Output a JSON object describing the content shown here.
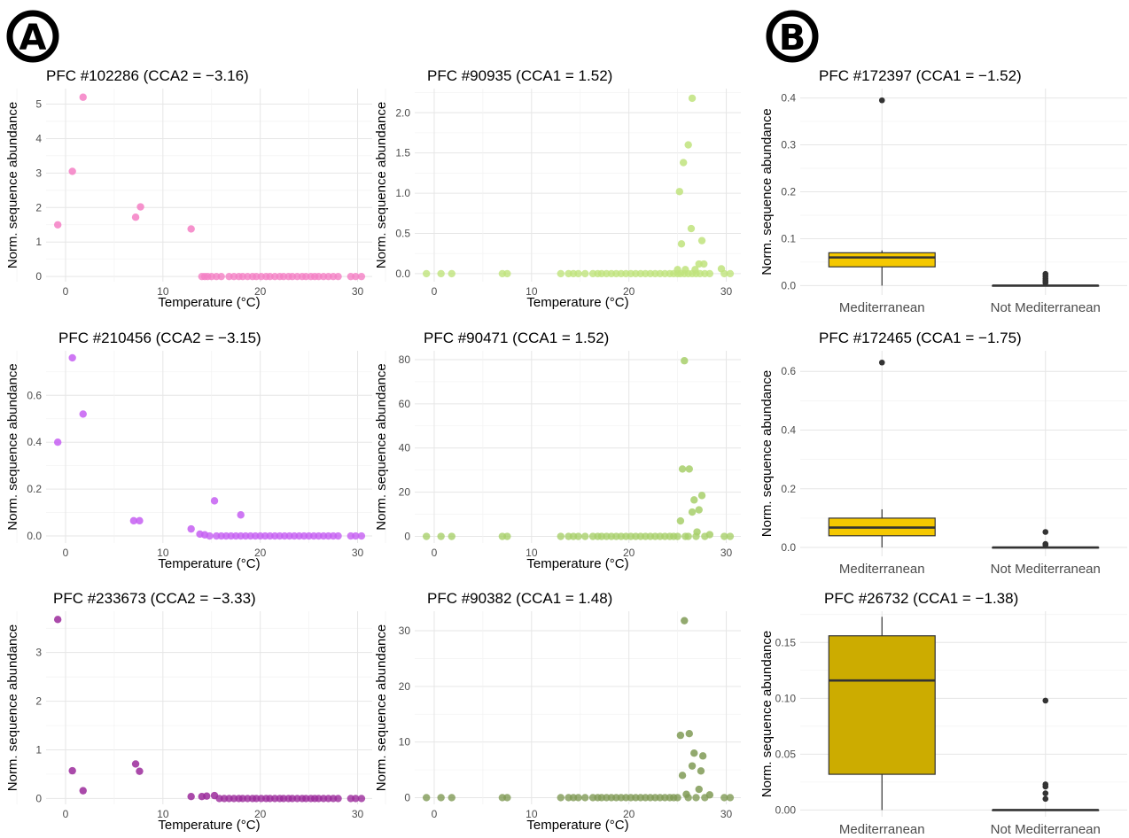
{
  "panel_labels": [
    "A",
    "B"
  ],
  "chart_data": [
    {
      "type": "scatter",
      "title": "PFC #102286 (CCA2 = −3.16)",
      "xlabel": "Temperature (°C)",
      "ylabel": "Norm. sequence abundance",
      "xlim": [
        -2,
        31.5
      ],
      "ylim": [
        -0.15,
        5.45
      ],
      "xticks": [
        0,
        10,
        20,
        30
      ],
      "yticks": [
        0,
        1,
        2,
        3,
        4,
        5
      ],
      "ytick_labels": [
        "0",
        "1",
        "2",
        "3",
        "4",
        "5"
      ],
      "color": "#f47fc4",
      "grid": true,
      "points": [
        [
          -0.8,
          1.5
        ],
        [
          0.7,
          3.05
        ],
        [
          1.8,
          5.2
        ],
        [
          7.2,
          1.72
        ],
        [
          7.7,
          2.02
        ],
        [
          12.9,
          1.38
        ]
      ],
      "baseline_x": [
        14.0,
        14.3,
        14.6,
        15.0,
        15.5,
        16.0,
        16.8,
        17.3,
        17.8,
        18.2,
        18.7,
        19.2,
        19.6,
        20.1,
        20.6,
        21.0,
        21.5,
        22.0,
        22.4,
        22.9,
        23.3,
        23.8,
        24.3,
        24.7,
        25.2,
        25.6,
        26.0,
        26.5,
        27.0,
        27.5,
        28.0,
        29.3,
        29.8,
        30.4
      ]
    },
    {
      "type": "scatter",
      "title": "PFC #90935 (CCA1 = 1.52)",
      "xlabel": "Temperature (°C)",
      "ylabel": "Norm. sequence abundance",
      "xlim": [
        -2,
        31.5
      ],
      "ylim": [
        -0.1,
        2.3
      ],
      "xticks": [
        0,
        10,
        20,
        30
      ],
      "yticks": [
        0,
        0.5,
        1,
        1.5,
        2
      ],
      "ytick_labels": [
        "0.0",
        "0.5",
        "1.0",
        "1.5",
        "2.0"
      ],
      "color": "#bfe37c",
      "grid": true,
      "points": [
        [
          25.2,
          1.02
        ],
        [
          25.4,
          0.37
        ],
        [
          25.6,
          1.38
        ],
        [
          26.1,
          1.6
        ],
        [
          26.4,
          0.56
        ],
        [
          26.5,
          2.18
        ],
        [
          27.2,
          0.12
        ],
        [
          27.5,
          0.41
        ],
        [
          27.7,
          0.12
        ],
        [
          29.5,
          0.06
        ],
        [
          25.0,
          0.05
        ],
        [
          25.8,
          0.05
        ],
        [
          26.8,
          0.05
        ]
      ],
      "baseline_x": [
        -0.8,
        0.7,
        1.8,
        7.0,
        7.5,
        13.0,
        13.8,
        14.3,
        14.8,
        15.5,
        16.3,
        16.8,
        17.2,
        17.7,
        18.2,
        18.7,
        19.2,
        19.7,
        20.2,
        20.7,
        21.2,
        21.7,
        22.2,
        22.7,
        23.2,
        23.7,
        24.2,
        24.6,
        25.0,
        25.3,
        25.7,
        26.1,
        26.5,
        26.9,
        27.3,
        27.8,
        28.3,
        29.8,
        30.4
      ]
    },
    {
      "type": "scatter",
      "title": "PFC #210456 (CCA2 = −3.15)",
      "xlabel": "Temperature (°C)",
      "ylabel": "Norm. sequence abundance",
      "xlim": [
        -2,
        31.5
      ],
      "ylim": [
        -0.03,
        0.79
      ],
      "xticks": [
        0,
        10,
        20,
        30
      ],
      "yticks": [
        0,
        0.2,
        0.4,
        0.6
      ],
      "ytick_labels": [
        "0.0",
        "0.2",
        "0.4",
        "0.6"
      ],
      "color": "#c65ff2",
      "grid": true,
      "points": [
        [
          -0.8,
          0.4
        ],
        [
          0.7,
          0.76
        ],
        [
          1.8,
          0.52
        ],
        [
          7.0,
          0.065
        ],
        [
          7.6,
          0.065
        ],
        [
          12.9,
          0.03
        ],
        [
          15.3,
          0.15
        ],
        [
          18.0,
          0.09
        ],
        [
          13.8,
          0.008
        ],
        [
          14.3,
          0.005
        ]
      ],
      "baseline_x": [
        14.8,
        15.5,
        16.0,
        16.5,
        17.0,
        17.5,
        18.0,
        18.5,
        19.0,
        19.5,
        20.0,
        20.5,
        21.0,
        21.5,
        22.0,
        22.5,
        23.0,
        23.5,
        24.0,
        24.5,
        25.0,
        25.5,
        26.0,
        26.5,
        27.0,
        27.5,
        28.0,
        29.3,
        29.8,
        30.4
      ]
    },
    {
      "type": "scatter",
      "title": "PFC #90471 (CCA1 = 1.52)",
      "xlabel": "Temperature (°C)",
      "ylabel": "Norm. sequence abundance",
      "xlim": [
        -2,
        31.5
      ],
      "ylim": [
        -3,
        84
      ],
      "xticks": [
        0,
        10,
        20,
        30
      ],
      "yticks": [
        0,
        20,
        40,
        60,
        80
      ],
      "ytick_labels": [
        "0",
        "20",
        "40",
        "60",
        "80"
      ],
      "color": "#a7cf6a",
      "grid": true,
      "points": [
        [
          25.3,
          7.0
        ],
        [
          25.5,
          30.5
        ],
        [
          25.7,
          79.5
        ],
        [
          26.2,
          30.5
        ],
        [
          26.5,
          11.0
        ],
        [
          26.7,
          16.5
        ],
        [
          27.2,
          12.0
        ],
        [
          27.5,
          18.5
        ],
        [
          27.0,
          2.0
        ],
        [
          28.3,
          0.8
        ]
      ],
      "baseline_x": [
        -0.8,
        0.7,
        1.8,
        7.0,
        7.5,
        13.0,
        13.8,
        14.3,
        14.8,
        15.5,
        16.3,
        16.8,
        17.2,
        17.7,
        18.2,
        18.7,
        19.2,
        19.7,
        20.2,
        20.7,
        21.2,
        21.7,
        22.2,
        22.7,
        23.2,
        23.7,
        24.2,
        24.6,
        25.0,
        25.8,
        26.1,
        26.9,
        27.8,
        29.8,
        30.4
      ]
    },
    {
      "type": "scatter",
      "title": "PFC #233673 (CCA2 = −3.33)",
      "xlabel": "Temperature (°C)",
      "ylabel": "Norm. sequence abundance",
      "xlim": [
        -2,
        31.5
      ],
      "ylim": [
        -0.12,
        3.85
      ],
      "xticks": [
        0,
        10,
        20,
        30
      ],
      "yticks": [
        0,
        1,
        2,
        3
      ],
      "ytick_labels": [
        "0",
        "1",
        "2",
        "3"
      ],
      "color": "#9b2a9b",
      "grid": true,
      "points": [
        [
          -0.8,
          3.68
        ],
        [
          0.7,
          0.57
        ],
        [
          1.8,
          0.16
        ],
        [
          7.2,
          0.71
        ],
        [
          7.6,
          0.56
        ],
        [
          12.9,
          0.04
        ],
        [
          14.0,
          0.04
        ],
        [
          14.5,
          0.05
        ],
        [
          15.3,
          0.06
        ]
      ],
      "baseline_x": [
        15.8,
        16.3,
        16.8,
        17.3,
        17.8,
        18.2,
        18.7,
        19.2,
        19.6,
        20.1,
        20.6,
        21.0,
        21.5,
        22.0,
        22.4,
        22.9,
        23.3,
        23.8,
        24.3,
        24.7,
        25.2,
        25.6,
        26.0,
        26.5,
        27.0,
        27.5,
        28.0,
        29.3,
        29.8,
        30.4
      ]
    },
    {
      "type": "scatter",
      "title": "PFC #90382 (CCA1 = 1.48)",
      "xlabel": "Temperature (°C)",
      "ylabel": "Norm. sequence abundance",
      "xlim": [
        -2,
        31.5
      ],
      "ylim": [
        -1.2,
        33.5
      ],
      "xticks": [
        0,
        10,
        20,
        30
      ],
      "yticks": [
        0,
        10,
        20,
        30
      ],
      "ytick_labels": [
        "0",
        "10",
        "20",
        "30"
      ],
      "color": "#7f9a55",
      "grid": true,
      "points": [
        [
          25.3,
          11.2
        ],
        [
          25.5,
          4.0
        ],
        [
          25.7,
          31.8
        ],
        [
          26.2,
          11.5
        ],
        [
          26.5,
          5.7
        ],
        [
          26.7,
          8.0
        ],
        [
          27.2,
          1.5
        ],
        [
          27.4,
          4.8
        ],
        [
          27.6,
          7.5
        ],
        [
          25.9,
          0.6
        ],
        [
          28.3,
          0.5
        ]
      ],
      "baseline_x": [
        -0.8,
        0.7,
        1.8,
        7.0,
        7.5,
        13.0,
        13.8,
        14.3,
        14.8,
        15.5,
        16.3,
        16.8,
        17.2,
        17.7,
        18.2,
        18.7,
        19.2,
        19.7,
        20.2,
        20.7,
        21.2,
        21.7,
        22.2,
        22.7,
        23.2,
        23.7,
        24.2,
        24.6,
        25.0,
        26.1,
        26.9,
        27.8,
        29.8,
        30.4
      ]
    },
    {
      "type": "box",
      "title": "PFC #172397 (CCA1 = −1.52)",
      "xlabel": "",
      "ylabel": "Norm. sequence abundance",
      "ylim": [
        -0.02,
        0.42
      ],
      "yticks": [
        0,
        0.1,
        0.2,
        0.3,
        0.4
      ],
      "ytick_labels": [
        "0.0",
        "0.1",
        "0.2",
        "0.3",
        "0.4"
      ],
      "grid": true,
      "categories": [
        "Mediterranean",
        "Not Mediterranean"
      ],
      "boxes": [
        {
          "category": "Mediterranean",
          "color": "#f5c800",
          "min": 0.0,
          "q1": 0.04,
          "median": 0.06,
          "q3": 0.07,
          "max": 0.075,
          "outliers": [
            0.395
          ]
        },
        {
          "category": "Not Mediterranean",
          "color": "#f5c800",
          "min": 0.0,
          "q1": 0.0,
          "median": 0.0,
          "q3": 0.0,
          "max": 0.0,
          "outliers": [
            0.025,
            0.02,
            0.015,
            0.01,
            0.006
          ]
        }
      ]
    },
    {
      "type": "box",
      "title": "PFC #172465 (CCA1 = −1.75)",
      "xlabel": "",
      "ylabel": "Norm. sequence abundance",
      "ylim": [
        -0.03,
        0.67
      ],
      "yticks": [
        0,
        0.2,
        0.4,
        0.6
      ],
      "ytick_labels": [
        "0.0",
        "0.2",
        "0.4",
        "0.6"
      ],
      "grid": true,
      "categories": [
        "Mediterranean",
        "Not Mediterranean"
      ],
      "boxes": [
        {
          "category": "Mediterranean",
          "color": "#f5c800",
          "min": 0.0,
          "q1": 0.04,
          "median": 0.068,
          "q3": 0.1,
          "max": 0.13,
          "outliers": [
            0.63
          ]
        },
        {
          "category": "Not Mediterranean",
          "color": "#f5c800",
          "min": 0.0,
          "q1": 0.0,
          "median": 0.0,
          "q3": 0.0,
          "max": 0.0,
          "outliers": [
            0.053,
            0.012,
            0.008
          ]
        }
      ]
    },
    {
      "type": "box",
      "title": "PFC #26732 (CCA1 = −1.38)",
      "xlabel": "",
      "ylabel": "Norm. sequence abundance",
      "ylim": [
        -0.006,
        0.178
      ],
      "yticks": [
        0,
        0.05,
        0.1,
        0.15
      ],
      "ytick_labels": [
        "0.00",
        "0.05",
        "0.10",
        "0.15"
      ],
      "grid": true,
      "categories": [
        "Mediterranean",
        "Not Mediterranean"
      ],
      "boxes": [
        {
          "category": "Mediterranean",
          "color": "#ccac00",
          "min": 0.0,
          "q1": 0.032,
          "median": 0.116,
          "q3": 0.156,
          "max": 0.173,
          "outliers": []
        },
        {
          "category": "Not Mediterranean",
          "color": "#ccac00",
          "min": 0.0,
          "q1": 0.0,
          "median": 0.0,
          "q3": 0.0,
          "max": 0.0,
          "outliers": [
            0.098,
            0.023,
            0.021,
            0.015,
            0.01
          ]
        }
      ]
    }
  ]
}
